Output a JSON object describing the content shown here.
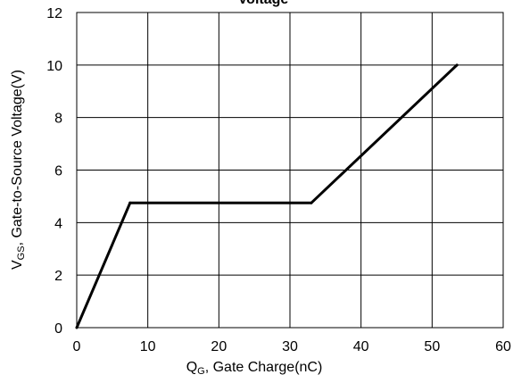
{
  "chart_data": {
    "type": "line",
    "title": "Voltage",
    "xlabel": {
      "main": "Q",
      "sub": "G",
      "rest": ", Gate Charge(nC)"
    },
    "ylabel": {
      "main": "V",
      "sub": "GS",
      "rest": ", Gate-to-Source Voltage(V)"
    },
    "xlim": [
      0,
      60
    ],
    "ylim": [
      0,
      12
    ],
    "xticks": [
      0,
      10,
      20,
      30,
      40,
      50,
      60
    ],
    "yticks": [
      0,
      2,
      4,
      6,
      8,
      10,
      12
    ],
    "grid": true,
    "series": [
      {
        "color": "#000000",
        "points": [
          [
            0,
            0
          ],
          [
            7.5,
            4.75
          ],
          [
            33,
            4.75
          ],
          [
            53.5,
            10
          ]
        ]
      }
    ]
  }
}
